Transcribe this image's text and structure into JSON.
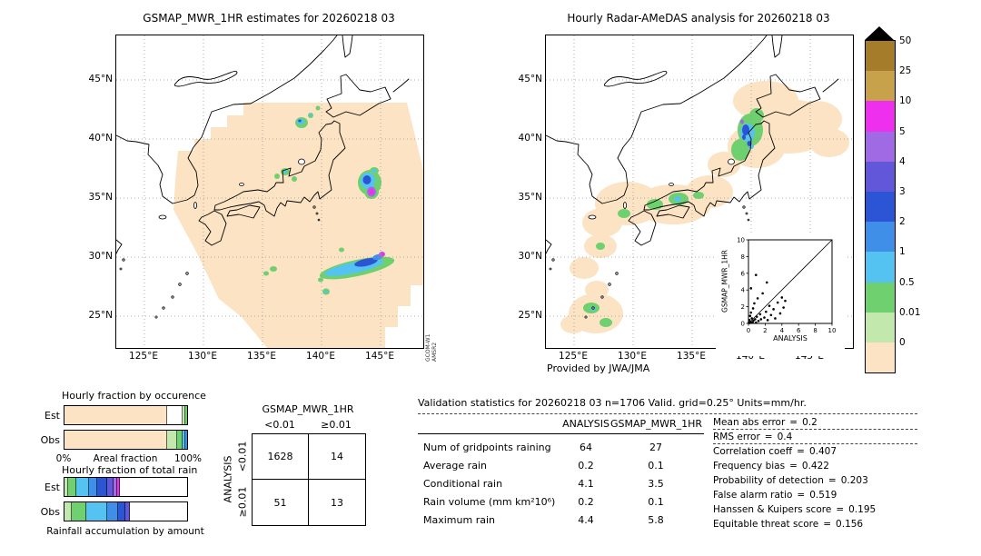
{
  "figure": {
    "left_map": {
      "title": "GSMAP_MWR_1HR estimates for 20260218 03",
      "lat_ticks": [
        "45°N",
        "40°N",
        "35°N",
        "30°N",
        "25°N"
      ],
      "lon_ticks": [
        "125°E",
        "130°E",
        "135°E",
        "140°E",
        "145°E"
      ],
      "watermark": [
        "GCOM-W1",
        "AMSR2"
      ]
    },
    "right_map": {
      "title": "Hourly Radar-AMeDAS analysis for 20260218 03",
      "lat_ticks": [
        "45°N",
        "40°N",
        "35°N",
        "30°N",
        "25°N"
      ],
      "lon_ticks": [
        "125°E",
        "130°E",
        "135°E",
        "140°E",
        "145°E"
      ],
      "credit": "Provided by JWA/JMA"
    }
  },
  "colorbar": {
    "units": "mm/hr",
    "entries": [
      {
        "label": "50",
        "color": "#a57d2a"
      },
      {
        "label": "25",
        "color": "#c8a24b"
      },
      {
        "label": "10",
        "color": "#ee30ee"
      },
      {
        "label": "5",
        "color": "#a06ae4"
      },
      {
        "label": "4",
        "color": "#6257d8"
      },
      {
        "label": "3",
        "color": "#2b55d4"
      },
      {
        "label": "2",
        "color": "#3f8ee8"
      },
      {
        "label": "1",
        "color": "#55c3f2"
      },
      {
        "label": "0.5",
        "color": "#6fd06f"
      },
      {
        "label": "0.01",
        "color": "#c3e8ae"
      },
      {
        "label": "0",
        "color": "#fbe3c4"
      }
    ]
  },
  "occurrence_section": {
    "title": "Hourly fraction by occurence",
    "row_labels": [
      "Est",
      "Obs"
    ],
    "xlabel": "Areal fraction",
    "xticks": [
      "0%",
      "100%"
    ]
  },
  "totalrain_section": {
    "title": "Hourly fraction of total rain",
    "row_labels": [
      "Est",
      "Obs"
    ],
    "caption": "Rainfall accumulation by amount"
  },
  "contingency": {
    "title": "GSMAP_MWR_1HR",
    "col_headers": [
      "<0.01",
      "≥0.01"
    ],
    "row_axis_label": "ANALYSIS",
    "row_headers": [
      "<0.01",
      "≥0.01"
    ],
    "cells": [
      "1628",
      "14",
      "51",
      "13"
    ]
  },
  "validation": {
    "header": "Validation statistics for 20260218 03  n=1706 Valid. grid=0.25° Units=mm/hr.",
    "columns": [
      "ANALYSIS",
      "GSMAP_MWR_1HR"
    ],
    "rows": [
      {
        "label": "Num of gridpoints raining",
        "analysis": "64",
        "gsmap": "27"
      },
      {
        "label": "Average rain",
        "analysis": "0.2",
        "gsmap": "0.1"
      },
      {
        "label": "Conditional rain",
        "analysis": "4.1",
        "gsmap": "3.5"
      },
      {
        "label": "Rain volume (mm km²10⁶)",
        "analysis": "0.2",
        "gsmap": "0.1"
      },
      {
        "label": "Maximum rain",
        "analysis": "4.4",
        "gsmap": "5.8"
      }
    ],
    "eq": "=",
    "scores": [
      {
        "label": "Mean abs error",
        "value": "0.2"
      },
      {
        "label": "RMS error",
        "value": "0.4"
      },
      {
        "label": "Correlation coeff",
        "value": "0.407"
      },
      {
        "label": "Frequency bias",
        "value": "0.422"
      },
      {
        "label": "Probability of detection",
        "value": "0.203"
      },
      {
        "label": "False alarm ratio",
        "value": "0.519"
      },
      {
        "label": "Hanssen & Kuipers score",
        "value": "0.195"
      },
      {
        "label": "Equitable threat score",
        "value": "0.156"
      }
    ]
  },
  "chart_data": [
    {
      "id": "fraction-occurrence",
      "type": "bar",
      "title": "Hourly fraction by occurence",
      "orientation": "horizontal-stacked",
      "xlabel": "Areal fraction",
      "xlim_labels": [
        "0%",
        "100%"
      ],
      "rows": [
        "Est",
        "Obs"
      ],
      "series": {
        "Est": [
          {
            "bin": "0",
            "pct": 84,
            "color": "#fbe3c4"
          },
          {
            "bin": "unobserved",
            "pct": 12.4,
            "color": "#ffffff"
          },
          {
            "bin": "0-0.01",
            "pct": 2,
            "color": "#c3e8ae"
          },
          {
            "bin": "0.01-0.5",
            "pct": 1.6,
            "color": "#6fd06f"
          }
        ],
        "Obs": [
          {
            "bin": "0",
            "pct": 84,
            "color": "#fbe3c4"
          },
          {
            "bin": "0-0.01",
            "pct": 8,
            "color": "#c3e8ae"
          },
          {
            "bin": "0.01-0.5",
            "pct": 4.2,
            "color": "#6fd06f"
          },
          {
            "bin": "0.5-1",
            "pct": 2.2,
            "color": "#55c3f2"
          },
          {
            "bin": "1-2",
            "pct": 1.6,
            "color": "#3f8ee8"
          }
        ]
      }
    },
    {
      "id": "fraction-totalrain",
      "type": "bar",
      "title": "Hourly fraction of total rain",
      "orientation": "horizontal-stacked",
      "xlabel": "Rainfall accumulation by amount",
      "rows": [
        "Est",
        "Obs"
      ],
      "series": {
        "Est": [
          {
            "bin": "0.01-0.5",
            "pct": 3,
            "color": "#c3e8ae"
          },
          {
            "bin": "0.5-1",
            "pct": 7,
            "color": "#6fd06f"
          },
          {
            "bin": "1-2",
            "pct": 10,
            "color": "#55c3f2"
          },
          {
            "bin": "2-3",
            "pct": 7,
            "color": "#3f8ee8"
          },
          {
            "bin": "3-4",
            "pct": 8,
            "color": "#2b55d4"
          },
          {
            "bin": "4-5",
            "pct": 5,
            "color": "#6257d8"
          },
          {
            "bin": "5-10",
            "pct": 3,
            "color": "#a06ae4"
          },
          {
            "bin": "10-25",
            "pct": 2,
            "color": "#ee30ee"
          },
          {
            "bin": "remainder",
            "pct": 55,
            "color": "#ffffff"
          }
        ],
        "Obs": [
          {
            "bin": "0.01-0.5",
            "pct": 6,
            "color": "#c3e8ae"
          },
          {
            "bin": "0.5-1",
            "pct": 12,
            "color": "#6fd06f"
          },
          {
            "bin": "1-2",
            "pct": 17,
            "color": "#55c3f2"
          },
          {
            "bin": "2-3",
            "pct": 9,
            "color": "#3f8ee8"
          },
          {
            "bin": "3-4",
            "pct": 6,
            "color": "#2b55d4"
          },
          {
            "bin": "4-5",
            "pct": 3,
            "color": "#6257d8"
          },
          {
            "bin": "remainder",
            "pct": 47,
            "color": "#ffffff"
          }
        ]
      }
    },
    {
      "id": "validation-scatter",
      "type": "scatter",
      "xlabel": "ANALYSIS",
      "ylabel": "GSMAP_MWR_1HR",
      "xlim": [
        0,
        10
      ],
      "ylim": [
        0,
        10
      ],
      "xticks": [
        0,
        2,
        4,
        6,
        8,
        10
      ],
      "yticks": [
        0,
        2,
        4,
        6,
        8,
        10
      ],
      "diagonal": true,
      "points": [
        [
          0.05,
          0.1
        ],
        [
          0.1,
          0.4
        ],
        [
          0.15,
          0.05
        ],
        [
          0.2,
          0.9
        ],
        [
          0.25,
          0.2
        ],
        [
          0.3,
          1.3
        ],
        [
          0.35,
          0.1
        ],
        [
          0.4,
          0.6
        ],
        [
          0.5,
          0.15
        ],
        [
          0.55,
          1.8
        ],
        [
          0.6,
          0.35
        ],
        [
          0.7,
          2.4
        ],
        [
          0.8,
          0.5
        ],
        [
          0.9,
          0.1
        ],
        [
          1.0,
          0.8
        ],
        [
          1.1,
          3.0
        ],
        [
          1.2,
          0.3
        ],
        [
          1.4,
          1.1
        ],
        [
          1.5,
          0.5
        ],
        [
          1.7,
          3.6
        ],
        [
          1.9,
          0.7
        ],
        [
          2.1,
          1.4
        ],
        [
          2.3,
          0.4
        ],
        [
          2.5,
          2.1
        ],
        [
          2.7,
          1.0
        ],
        [
          3.0,
          1.7
        ],
        [
          3.2,
          0.6
        ],
        [
          3.5,
          2.5
        ],
        [
          3.8,
          1.2
        ],
        [
          4.0,
          3.1
        ],
        [
          4.2,
          1.9
        ],
        [
          4.4,
          2.7
        ],
        [
          0.3,
          4.2
        ],
        [
          0.9,
          5.8
        ],
        [
          2.2,
          4.9
        ]
      ]
    },
    {
      "id": "contingency-table",
      "type": "table",
      "title": "GSMAP_MWR_1HR",
      "row_axis": "ANALYSIS",
      "col_headers": [
        "<0.01",
        "≥0.01"
      ],
      "row_headers": [
        "<0.01",
        "≥0.01"
      ],
      "values": [
        [
          1628,
          14
        ],
        [
          51,
          13
        ]
      ]
    },
    {
      "id": "validation-table",
      "type": "table",
      "col_headers": [
        "ANALYSIS",
        "GSMAP_MWR_1HR"
      ],
      "rows": [
        [
          "Num of gridpoints raining",
          64,
          27
        ],
        [
          "Average rain",
          0.2,
          0.1
        ],
        [
          "Conditional rain",
          4.1,
          3.5
        ],
        [
          "Rain volume (mm km²10⁶)",
          0.2,
          0.1
        ],
        [
          "Maximum rain",
          4.4,
          5.8
        ]
      ]
    }
  ]
}
